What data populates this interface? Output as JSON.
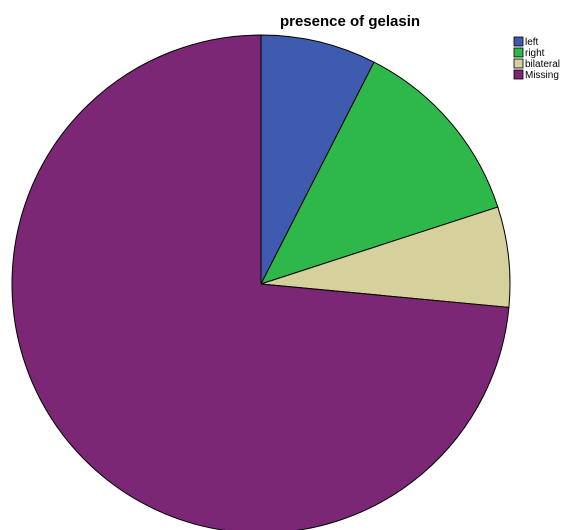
{
  "chart_data": {
    "type": "pie",
    "title": "presence of gelasin",
    "start_angle_deg": 0,
    "direction": "clockwise",
    "legend_position": "top-right",
    "slices": [
      {
        "label": "left",
        "value": 7.5,
        "color": "#3f5bb0"
      },
      {
        "label": "right",
        "value": 12.5,
        "color": "#2eb84a"
      },
      {
        "label": "bilateral",
        "value": 6.5,
        "color": "#d5d09c"
      },
      {
        "label": "Missing",
        "value": 73.5,
        "color": "#7b2776"
      }
    ]
  }
}
